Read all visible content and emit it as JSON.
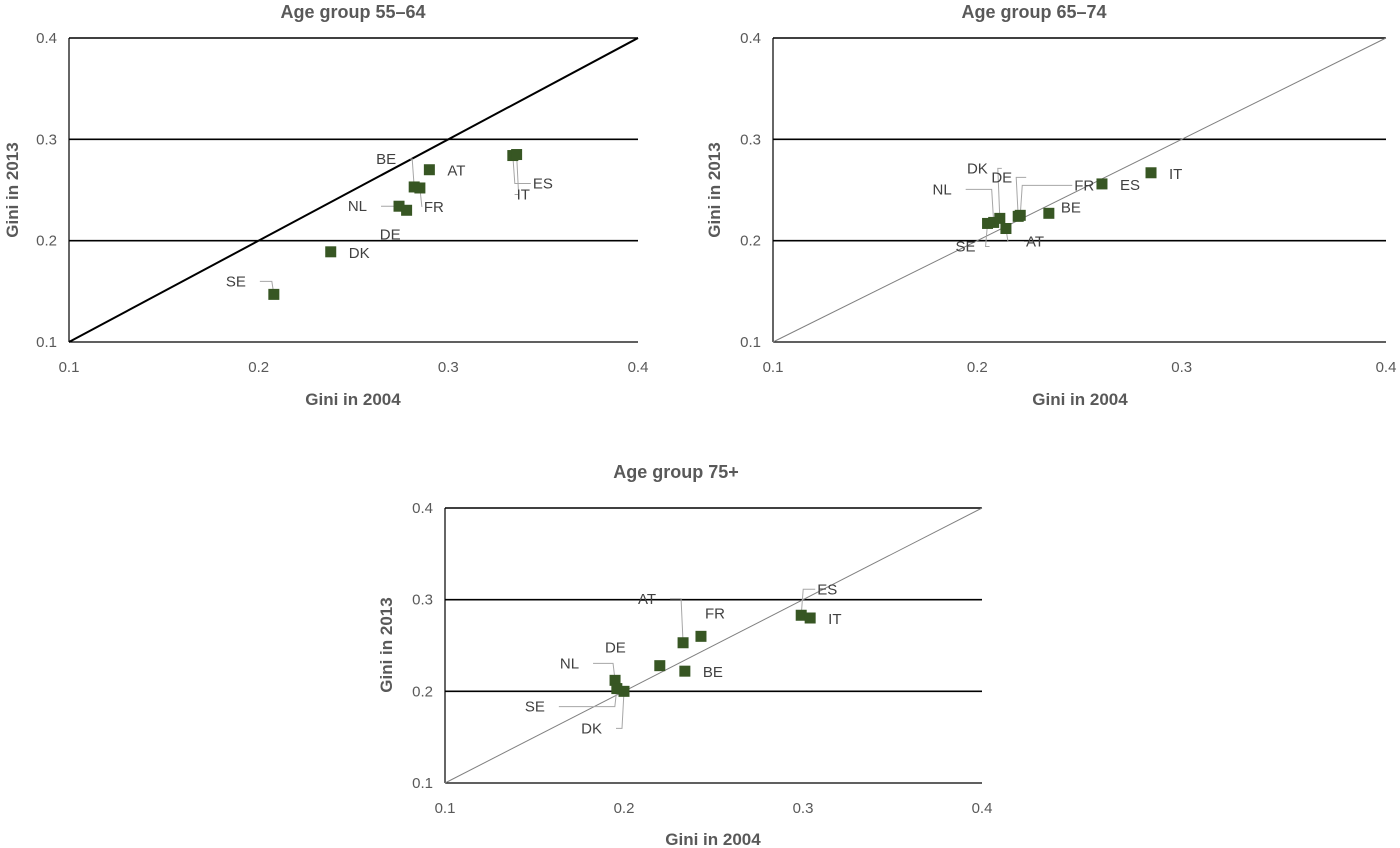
{
  "colors": {
    "marker": "#375623",
    "gridline": "#000000",
    "diagonal_bold": "#000000",
    "diagonal_thin": "#808080",
    "leader": "#a6a6a6",
    "text": "#595959"
  },
  "chart_data": [
    {
      "type": "scatter",
      "title": "Age group 55–64",
      "xlabel": "Gini in 2004",
      "ylabel": "Gini in 2013",
      "xlim": [
        0.1,
        0.4
      ],
      "ylim": [
        0.1,
        0.4
      ],
      "xticks": [
        "0.1",
        "0.2",
        "0.3",
        "0.4"
      ],
      "yticks": [
        "0.1",
        "0.2",
        "0.3",
        "0.4"
      ],
      "grid": "horizontal",
      "reference_line": "y = x",
      "points": [
        {
          "label": "SE",
          "x": 0.208,
          "y": 0.147
        },
        {
          "label": "DK",
          "x": 0.238,
          "y": 0.189
        },
        {
          "label": "NL",
          "x": 0.274,
          "y": 0.234
        },
        {
          "label": "DE",
          "x": 0.278,
          "y": 0.23
        },
        {
          "label": "BE",
          "x": 0.282,
          "y": 0.253
        },
        {
          "label": "FR",
          "x": 0.285,
          "y": 0.252
        },
        {
          "label": "AT",
          "x": 0.29,
          "y": 0.27
        },
        {
          "label": "ES",
          "x": 0.334,
          "y": 0.284
        },
        {
          "label": "IT",
          "x": 0.336,
          "y": 0.285
        }
      ]
    },
    {
      "type": "scatter",
      "title": "Age group 65–74",
      "xlabel": "Gini in 2004",
      "ylabel": "Gini in 2013",
      "xlim": [
        0.1,
        0.4
      ],
      "ylim": [
        0.1,
        0.4
      ],
      "xticks": [
        "0.1",
        "0.2",
        "0.3",
        "0.4"
      ],
      "yticks": [
        "0.1",
        "0.2",
        "0.3",
        "0.4"
      ],
      "grid": "horizontal",
      "reference_line": "y = x",
      "points": [
        {
          "label": "SE",
          "x": 0.205,
          "y": 0.217
        },
        {
          "label": "NL",
          "x": 0.208,
          "y": 0.218
        },
        {
          "label": "DK",
          "x": 0.211,
          "y": 0.222
        },
        {
          "label": "AT",
          "x": 0.214,
          "y": 0.212
        },
        {
          "label": "DE",
          "x": 0.22,
          "y": 0.224
        },
        {
          "label": "FR",
          "x": 0.221,
          "y": 0.225
        },
        {
          "label": "BE",
          "x": 0.235,
          "y": 0.227
        },
        {
          "label": "ES",
          "x": 0.261,
          "y": 0.256
        },
        {
          "label": "IT",
          "x": 0.285,
          "y": 0.267
        }
      ]
    },
    {
      "type": "scatter",
      "title": "Age group 75+",
      "xlabel": "Gini in 2004",
      "ylabel": "Gini in 2013",
      "xlim": [
        0.1,
        0.4
      ],
      "ylim": [
        0.1,
        0.4
      ],
      "xticks": [
        "0.1",
        "0.2",
        "0.3",
        "0.4"
      ],
      "yticks": [
        "0.1",
        "0.2",
        "0.3",
        "0.4"
      ],
      "grid": "horizontal",
      "reference_line": "y = x",
      "points": [
        {
          "label": "NL",
          "x": 0.195,
          "y": 0.212
        },
        {
          "label": "SE",
          "x": 0.196,
          "y": 0.203
        },
        {
          "label": "DK",
          "x": 0.2,
          "y": 0.2
        },
        {
          "label": "DE",
          "x": 0.22,
          "y": 0.228
        },
        {
          "label": "AT",
          "x": 0.233,
          "y": 0.253
        },
        {
          "label": "BE",
          "x": 0.234,
          "y": 0.222
        },
        {
          "label": "FR",
          "x": 0.243,
          "y": 0.26
        },
        {
          "label": "ES",
          "x": 0.299,
          "y": 0.283
        },
        {
          "label": "IT",
          "x": 0.304,
          "y": 0.28
        }
      ]
    }
  ]
}
